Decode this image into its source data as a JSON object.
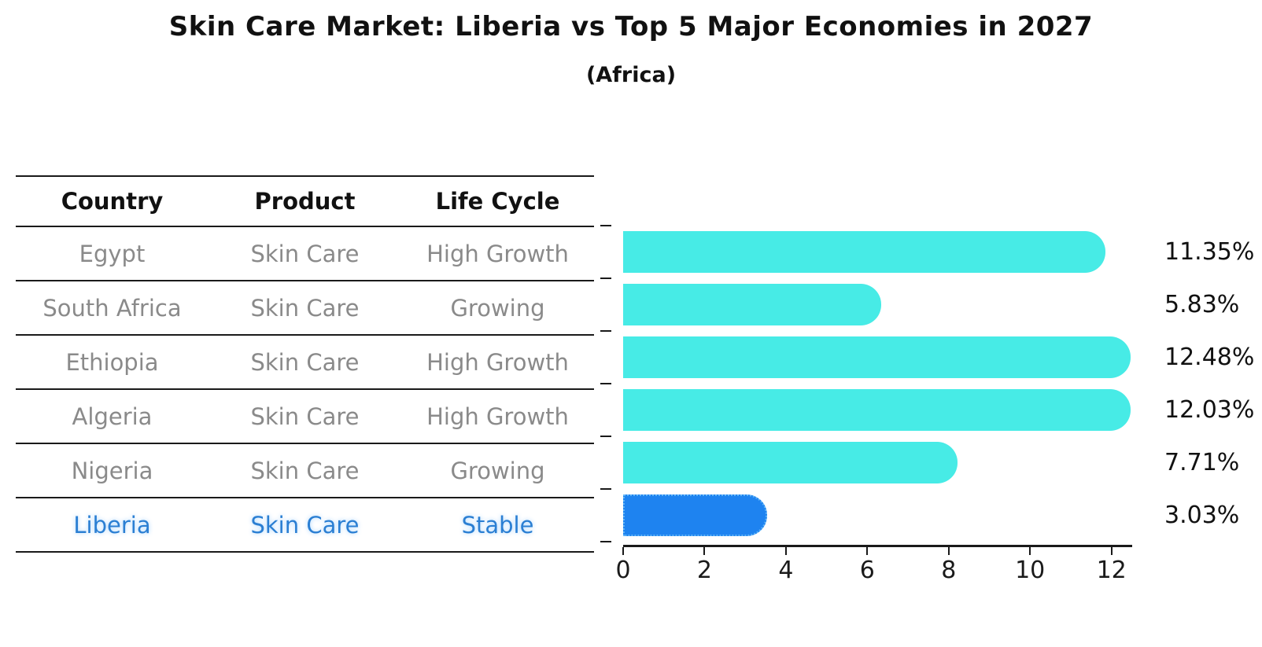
{
  "title": "Skin Care Market: Liberia vs Top 5 Major Economies in 2027",
  "subtitle": "(Africa)",
  "table": {
    "headers": [
      "Country",
      "Product",
      "Life Cycle"
    ],
    "rows": [
      {
        "country": "Egypt",
        "product": "Skin Care",
        "life_cycle": "High Growth",
        "highlight": false
      },
      {
        "country": "South Africa",
        "product": "Skin Care",
        "life_cycle": "Growing",
        "highlight": false
      },
      {
        "country": "Ethiopia",
        "product": "Skin Care",
        "life_cycle": "High Growth",
        "highlight": false
      },
      {
        "country": "Algeria",
        "product": "Skin Care",
        "life_cycle": "High Growth",
        "highlight": false
      },
      {
        "country": "Nigeria",
        "product": "Skin Care",
        "life_cycle": "Growing",
        "highlight": false
      },
      {
        "country": "Liberia",
        "product": "Skin Care",
        "life_cycle": "Stable",
        "highlight": true
      }
    ]
  },
  "chart_data": {
    "type": "bar",
    "orientation": "horizontal",
    "title": "Skin Care Market: Liberia vs Top 5 Major Economies in 2027",
    "subtitle": "(Africa)",
    "categories": [
      "Egypt",
      "South Africa",
      "Ethiopia",
      "Algeria",
      "Nigeria",
      "Liberia"
    ],
    "values": [
      11.35,
      5.83,
      12.48,
      12.03,
      7.71,
      3.03
    ],
    "value_labels": [
      "11.35%",
      "5.83%",
      "12.48%",
      "12.03%",
      "7.71%",
      "3.03%"
    ],
    "unit": "%",
    "x_ticks": [
      0,
      2,
      4,
      6,
      8,
      10,
      12
    ],
    "x_tick_labels": [
      "0",
      "2",
      "4",
      "6",
      "8",
      "10",
      "12"
    ],
    "xlim": [
      0,
      12.47
    ],
    "grid": false,
    "legend": false,
    "bar_color": "#47EBE6",
    "highlight_index": 5,
    "highlight_color": "#1E83F0",
    "highlight_border_color": "#5FB4F7"
  },
  "colors": {
    "background": "#FFFFFF",
    "title_text": "#111111",
    "header_text": "#111111",
    "row_text": "#8A8A8A",
    "highlight_text": "#2B7FD3",
    "line": "#1A1A1A",
    "bar": "#47EBE6",
    "highlight_bar": "#1E83F0"
  }
}
